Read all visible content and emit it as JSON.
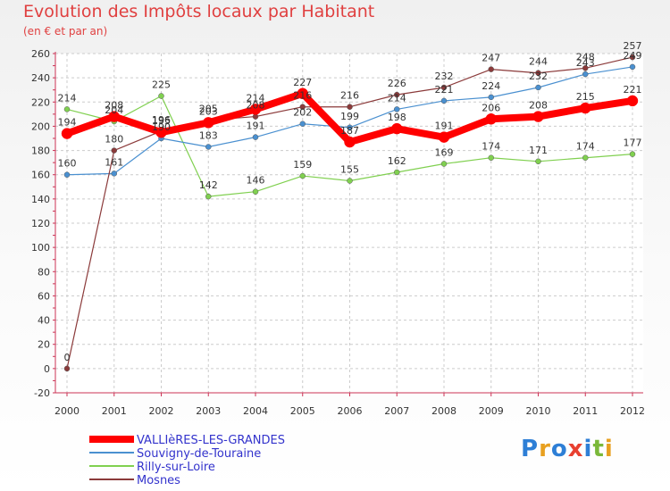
{
  "title": "Evolution des Impôts locaux par Habitant",
  "subtitle": "(en € et par an)",
  "logo": [
    "P",
    "r",
    "o",
    "x",
    "i",
    "t",
    "i"
  ],
  "logo_colors": [
    "#2e7fd6",
    "#e8a020",
    "#2e7fd6",
    "#e84030",
    "#2e7fd6",
    "#7ab83a",
    "#e8a020"
  ],
  "chart_data": {
    "type": "line",
    "x": [
      "2000",
      "2001",
      "2002",
      "2003",
      "2004",
      "2005",
      "2006",
      "2007",
      "2008",
      "2009",
      "2010",
      "2011",
      "2012"
    ],
    "ylim": [
      -20,
      260
    ],
    "yticks": [
      "-20",
      "0",
      "20",
      "40",
      "60",
      "80",
      "100",
      "120",
      "140",
      "160",
      "180",
      "200",
      "220",
      "240",
      "260"
    ],
    "grid": true,
    "legend_position": "bottom-left",
    "series": [
      {
        "name": "VALLIèRES-LES-GRANDES",
        "color": "#ff0000",
        "values": [
          194,
          208,
          195,
          203,
          214,
          227,
          187,
          198,
          191,
          206,
          208,
          215,
          221
        ],
        "labels": [
          "194",
          "208",
          "195",
          "203",
          "214",
          "227",
          "187",
          "198",
          "191",
          "206",
          "208",
          "215",
          "221"
        ]
      },
      {
        "name": "Souvigny-de-Touraine",
        "color": "#4a90d0",
        "values": [
          160,
          161,
          190,
          183,
          191,
          202,
          199,
          214,
          221,
          224,
          232,
          243,
          249
        ],
        "labels": [
          "160",
          "161",
          "190",
          "183",
          "191",
          "202",
          "199",
          "214",
          "221",
          "224",
          "232",
          "243",
          "249"
        ]
      },
      {
        "name": "Rilly-sur-Loire",
        "color": "#80d050",
        "values": [
          214,
          204,
          225,
          142,
          146,
          159,
          155,
          162,
          169,
          174,
          171,
          174,
          177
        ],
        "labels": [
          "214",
          "204",
          "225",
          "142",
          "146",
          "159",
          "155",
          "162",
          "169",
          "174",
          "171",
          "174",
          "177"
        ]
      },
      {
        "name": "Mosnes",
        "color": "#8b3a3a",
        "values": [
          0,
          180,
          196,
          205,
          208,
          216,
          216,
          226,
          232,
          247,
          244,
          248,
          257
        ],
        "labels": [
          "0",
          "180",
          "196",
          "205",
          "208",
          "216",
          "216",
          "226",
          "232",
          "247",
          "244",
          "248",
          "257"
        ]
      }
    ]
  }
}
